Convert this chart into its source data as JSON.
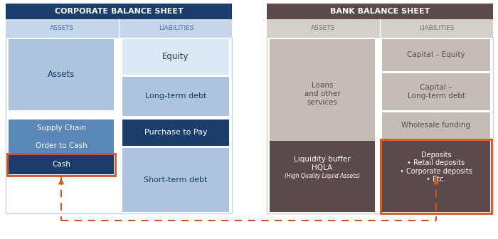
{
  "corp_title": "CORPORATE BALANCE SHEET",
  "corp_title_bg": "#1a3d6b",
  "corp_header_bg": "#c5d6ea",
  "corp_assets_label": "ASSETS",
  "corp_liabilities_label": "LIABILITIES",
  "bank_title": "BANK BALANCE SHEET",
  "bank_title_bg": "#5c4a4a",
  "bank_header_bg": "#d4cfc9",
  "bank_assets_label": "ASSETS",
  "bank_liabilities_label": "LIABILITIES",
  "light_blue": "#adc4de",
  "mid_blue": "#5b87b8",
  "dark_blue": "#1a3d6b",
  "light_gray": "#c4bdb7",
  "dark_brown": "#5c4a4a",
  "orange_red": "#d4541a",
  "white": "#ffffff",
  "very_light_blue": "#dce8f3",
  "bg_color": "#ffffff"
}
